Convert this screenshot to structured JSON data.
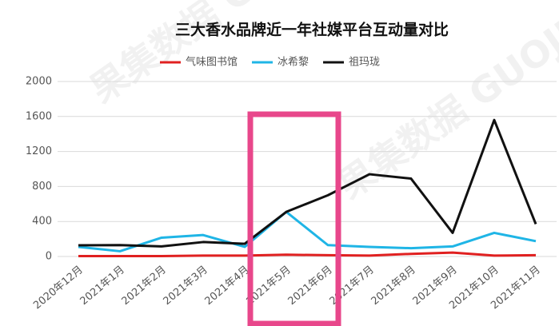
{
  "chart_data": {
    "type": "line",
    "title": "三大香水品牌近一年社媒平台互动量对比",
    "watermark": "果集数据 GUOJI.PRO",
    "categories": [
      "2020年12月",
      "2021年1月",
      "2021年2月",
      "2021年3月",
      "2021年4月",
      "2021年5月",
      "2021年6月",
      "2021年7月",
      "2021年8月",
      "2021年9月",
      "2021年10月",
      "2021年11月"
    ],
    "series": [
      {
        "name": "气味图书馆",
        "color": "#e02020",
        "values": [
          5,
          5,
          5,
          10,
          10,
          20,
          15,
          10,
          30,
          45,
          10,
          15
        ]
      },
      {
        "name": "冰希黎",
        "color": "#1fb5e6",
        "values": [
          110,
          60,
          215,
          245,
          110,
          510,
          130,
          110,
          95,
          115,
          270,
          175
        ]
      },
      {
        "name": "祖玛珑",
        "color": "#111111",
        "values": [
          128,
          130,
          115,
          165,
          145,
          510,
          700,
          940,
          890,
          270,
          1560,
          370
        ]
      }
    ],
    "ylim": [
      0,
      2000
    ],
    "yticks": [
      0,
      400,
      800,
      1200,
      1600,
      2000
    ],
    "grid": true
  }
}
